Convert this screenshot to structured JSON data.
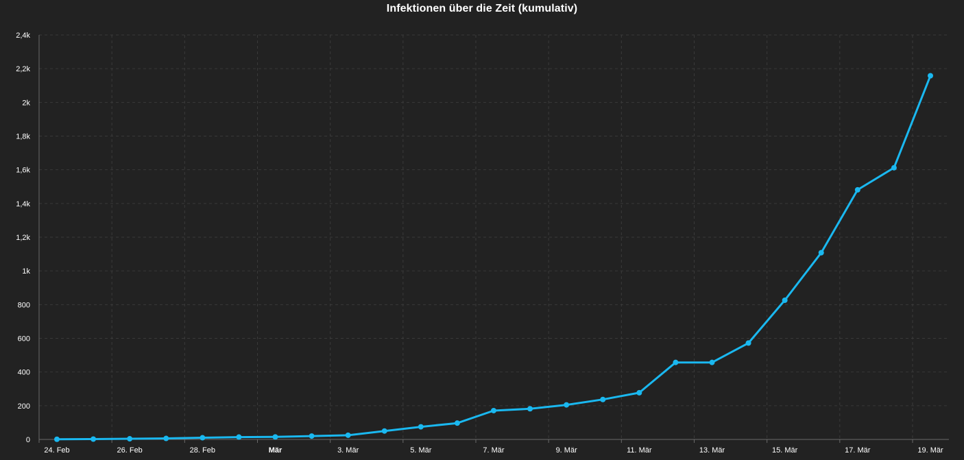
{
  "chart_data": {
    "type": "line",
    "title": "Infektionen über die Zeit (kumulativ)",
    "xlabel": "",
    "ylabel": "",
    "x": [
      "2020-02-24",
      "2020-02-25",
      "2020-02-26",
      "2020-02-27",
      "2020-02-28",
      "2020-02-29",
      "2020-03-01",
      "2020-03-02",
      "2020-03-03",
      "2020-03-04",
      "2020-03-05",
      "2020-03-06",
      "2020-03-07",
      "2020-03-08",
      "2020-03-09",
      "2020-03-10",
      "2020-03-11",
      "2020-03-12",
      "2020-03-13",
      "2020-03-14",
      "2020-03-15",
      "2020-03-16",
      "2020-03-17",
      "2020-03-18",
      "2020-03-19"
    ],
    "series": [
      {
        "values": [
          1,
          2,
          4,
          6,
          10,
          14,
          15,
          20,
          25,
          50,
          75,
          97,
          171,
          182,
          205,
          237,
          277,
          457,
          457,
          572,
          826,
          1108,
          1481,
          1612,
          2158
        ],
        "color": "#1ab8f0"
      }
    ],
    "ylim": [
      0,
      2400
    ],
    "yticks": [
      {
        "value": 0,
        "label": "0"
      },
      {
        "value": 200,
        "label": "200"
      },
      {
        "value": 400,
        "label": "400"
      },
      {
        "value": 600,
        "label": "600"
      },
      {
        "value": 800,
        "label": "800"
      },
      {
        "value": 1000,
        "label": "1k"
      },
      {
        "value": 1200,
        "label": "1,2k"
      },
      {
        "value": 1400,
        "label": "1,4k"
      },
      {
        "value": 1600,
        "label": "1,6k"
      },
      {
        "value": 1800,
        "label": "1,8k"
      },
      {
        "value": 2000,
        "label": "2k"
      },
      {
        "value": 2200,
        "label": "2,2k"
      },
      {
        "value": 2400,
        "label": "2,4k"
      }
    ],
    "xticks": [
      {
        "value": "2020-02-24",
        "label": "24. Feb",
        "emphasis": false
      },
      {
        "value": "2020-02-26",
        "label": "26. Feb",
        "emphasis": false
      },
      {
        "value": "2020-02-28",
        "label": "28. Feb",
        "emphasis": false
      },
      {
        "value": "2020-03-01",
        "label": "Mär",
        "emphasis": true
      },
      {
        "value": "2020-03-03",
        "label": "3. Mär",
        "emphasis": false
      },
      {
        "value": "2020-03-05",
        "label": "5. Mär",
        "emphasis": false
      },
      {
        "value": "2020-03-07",
        "label": "7. Mär",
        "emphasis": false
      },
      {
        "value": "2020-03-09",
        "label": "9. Mär",
        "emphasis": false
      },
      {
        "value": "2020-03-11",
        "label": "11. Mär",
        "emphasis": false
      },
      {
        "value": "2020-03-13",
        "label": "13. Mär",
        "emphasis": false
      },
      {
        "value": "2020-03-15",
        "label": "15. Mär",
        "emphasis": false
      },
      {
        "value": "2020-03-17",
        "label": "17. Mär",
        "emphasis": false
      },
      {
        "value": "2020-03-19",
        "label": "19. Mär",
        "emphasis": false
      }
    ],
    "grid": true,
    "legend": "none",
    "colors": {
      "background": "#222222",
      "grid": "#3a3a3a",
      "axis": "#6b6b6b",
      "text": "#ffffff",
      "line": "#1ab8f0"
    }
  }
}
